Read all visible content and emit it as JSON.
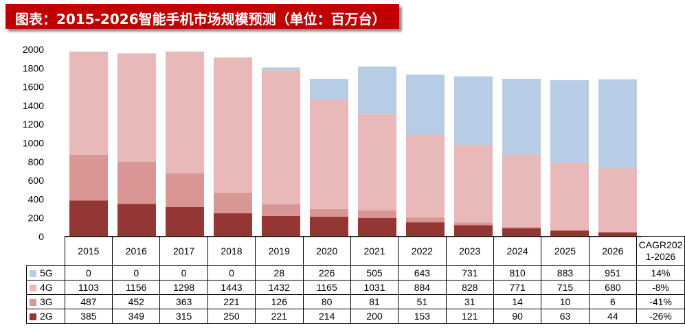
{
  "title": "图表：2015-2026智能手机市场规模预测（单位：百万台）",
  "colors": {
    "title_bg": "#c00000",
    "5G": "#b7cde5",
    "4G": "#e8b9b8",
    "3G": "#d99694",
    "2G": "#943634"
  },
  "chart_data": {
    "type": "bar",
    "stacked": true,
    "categories": [
      "2015",
      "2016",
      "2017",
      "2018",
      "2019",
      "2020",
      "2021",
      "2022",
      "2023",
      "2024",
      "2025",
      "2026"
    ],
    "series": [
      {
        "name": "2G",
        "values": [
          385,
          349,
          315,
          250,
          221,
          214,
          200,
          153,
          121,
          90,
          63,
          44
        ]
      },
      {
        "name": "3G",
        "values": [
          487,
          452,
          363,
          221,
          126,
          80,
          81,
          51,
          31,
          14,
          10,
          6
        ]
      },
      {
        "name": "4G",
        "values": [
          1103,
          1156,
          1298,
          1443,
          1432,
          1165,
          1031,
          884,
          828,
          771,
          715,
          680
        ]
      },
      {
        "name": "5G",
        "values": [
          0,
          0,
          0,
          0,
          28,
          226,
          505,
          643,
          731,
          810,
          883,
          951
        ]
      }
    ],
    "ylim": [
      0,
      2000
    ],
    "yticks": [
      0,
      200,
      400,
      600,
      800,
      1000,
      1200,
      1400,
      1600,
      1800,
      2000
    ],
    "grid": false,
    "legend": "data table"
  },
  "table": {
    "cagr_header": "CAGR202\n1-2026",
    "rows": [
      {
        "label": "5G",
        "color_key": "5G",
        "values": [
          "0",
          "0",
          "0",
          "0",
          "28",
          "226",
          "505",
          "643",
          "731",
          "810",
          "883",
          "951"
        ],
        "cagr": "14%"
      },
      {
        "label": "4G",
        "color_key": "4G",
        "values": [
          "1103",
          "1156",
          "1298",
          "1443",
          "1432",
          "1165",
          "1031",
          "884",
          "828",
          "771",
          "715",
          "680"
        ],
        "cagr": "-8%"
      },
      {
        "label": "3G",
        "color_key": "3G",
        "values": [
          "487",
          "452",
          "363",
          "221",
          "126",
          "80",
          "81",
          "51",
          "31",
          "14",
          "10",
          "6"
        ],
        "cagr": "-41%"
      },
      {
        "label": "2G",
        "color_key": "2G",
        "values": [
          "385",
          "349",
          "315",
          "250",
          "221",
          "214",
          "200",
          "153",
          "121",
          "90",
          "63",
          "44"
        ],
        "cagr": "-26%"
      }
    ]
  }
}
